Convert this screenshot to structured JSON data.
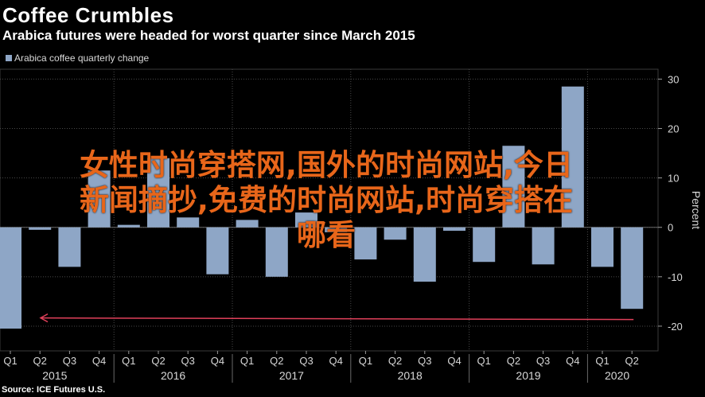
{
  "header": {
    "title": "Coffee Crumbles",
    "subtitle": "Arabica futures were headed for worst quarter since March 2015"
  },
  "legend": {
    "label": "Arabica coffee quarterly change"
  },
  "source": "Source: ICE Futures U.S.",
  "overlay": {
    "line1": "女性时尚穿搭网,国外的时尚网站,今日",
    "line2": "新闻摘抄,免费的时尚网站,时尚穿搭在",
    "line3": "哪看"
  },
  "chart_data": {
    "type": "bar",
    "title": "Coffee Crumbles",
    "subtitle": "Arabica futures were headed for worst quarter since March 2015",
    "ylabel": "Percent",
    "ylim": [
      -25,
      32
    ],
    "yticks": [
      -20,
      -10,
      0,
      10,
      20,
      30
    ],
    "ytick_labels": [
      "-20",
      "-10",
      "0",
      "10",
      "20",
      "30"
    ],
    "grid": true,
    "legend_position": "top-left",
    "series": [
      {
        "name": "Arabica coffee quarterly change",
        "color": "#8ea6c6",
        "values": [
          -20.5,
          -0.5,
          -8,
          11.5,
          0.5,
          14,
          2,
          -9.5,
          1.5,
          -10,
          3,
          -1,
          -6.5,
          -2.5,
          -11,
          -0.7,
          -7,
          16.5,
          -7.5,
          28.5,
          -8,
          -16.5
        ]
      }
    ],
    "categories": [
      "Q1 2015",
      "Q2 2015",
      "Q3 2015",
      "Q4 2015",
      "Q1 2016",
      "Q2 2016",
      "Q3 2016",
      "Q4 2016",
      "Q1 2017",
      "Q2 2017",
      "Q3 2017",
      "Q4 2017",
      "Q1 2018",
      "Q2 2018",
      "Q3 2018",
      "Q4 2018",
      "Q1 2019",
      "Q2 2019",
      "Q3 2019",
      "Q4 2019",
      "Q1 2020",
      "Q2 2020"
    ],
    "quarter_labels": [
      "Q1",
      "Q2",
      "Q3",
      "Q4",
      "Q1",
      "Q2",
      "Q3",
      "Q4",
      "Q1",
      "Q2",
      "Q3",
      "Q4",
      "Q1",
      "Q2",
      "Q3",
      "Q4",
      "Q1",
      "Q2",
      "Q3",
      "Q4",
      "Q1",
      "Q2"
    ],
    "year_labels": [
      {
        "label": "2015",
        "start": 0,
        "end": 3
      },
      {
        "label": "2016",
        "start": 4,
        "end": 7
      },
      {
        "label": "2017",
        "start": 8,
        "end": 11
      },
      {
        "label": "2018",
        "start": 12,
        "end": 15
      },
      {
        "label": "2019",
        "start": 16,
        "end": 19
      },
      {
        "label": "2020",
        "start": 20,
        "end": 21
      }
    ],
    "annotation": {
      "type": "arrow",
      "from_category_index": 21,
      "to_category_index": 0,
      "y_value": -18.5,
      "color": "#e0405a"
    }
  }
}
